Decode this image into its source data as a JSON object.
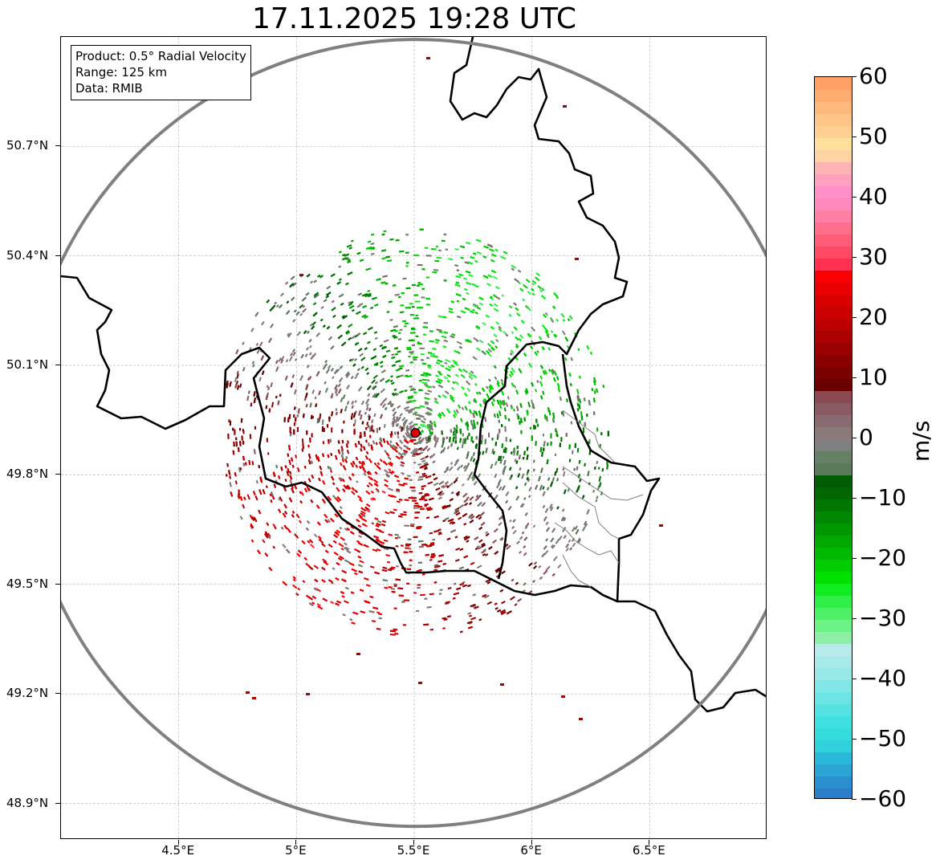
{
  "title": "17.11.2025 19:28 UTC",
  "info": {
    "product": "Product: 0.5° Radial Velocity",
    "range": "Range: 125 km",
    "source": "Data: RMIB"
  },
  "map": {
    "extent_lon": [
      4.0,
      7.0
    ],
    "extent_lat": [
      48.8,
      51.0
    ],
    "radar_site": {
      "lon": 5.505,
      "lat": 49.915,
      "label": "radar-site"
    },
    "range_ring_km": 125,
    "lat_ticks": [
      "48.9°N",
      "49.2°N",
      "49.5°N",
      "49.8°N",
      "50.1°N",
      "50.4°N",
      "50.7°N"
    ],
    "lat_values": [
      48.9,
      49.2,
      49.5,
      49.8,
      50.1,
      50.4,
      50.7
    ],
    "lon_ticks": [
      "4.5°E",
      "5°E",
      "5.5°E",
      "6°E",
      "6.5°E"
    ],
    "lon_values": [
      4.5,
      5.0,
      5.5,
      6.0,
      6.5
    ],
    "colors": {
      "border": "#000000",
      "ring": "#808080",
      "grid": "#b0b0b0",
      "admin": "#808080",
      "site": "#e00000"
    }
  },
  "colorbar": {
    "unit": "m/s",
    "min": -60,
    "max": 60,
    "ticks": [
      "60",
      "50",
      "40",
      "30",
      "20",
      "10",
      "0",
      "−10",
      "−20",
      "−30",
      "−40",
      "−50",
      "−60"
    ],
    "tick_values": [
      60,
      50,
      40,
      30,
      20,
      10,
      0,
      -10,
      -20,
      -30,
      -40,
      -50,
      -60
    ],
    "stops": [
      {
        "v": -60,
        "c": "#2a7fc8"
      },
      {
        "v": -58,
        "c": "#2a8fcf"
      },
      {
        "v": -56,
        "c": "#2aa5d4"
      },
      {
        "v": -54,
        "c": "#2ab8d8"
      },
      {
        "v": -52,
        "c": "#30d0dc"
      },
      {
        "v": -50,
        "c": "#35dcdc"
      },
      {
        "v": -48,
        "c": "#40e0e0"
      },
      {
        "v": -46,
        "c": "#55e2e2"
      },
      {
        "v": -44,
        "c": "#6ce4e4"
      },
      {
        "v": -42,
        "c": "#82e6e6"
      },
      {
        "v": -40,
        "c": "#98e8e8"
      },
      {
        "v": -38,
        "c": "#a8eaea"
      },
      {
        "v": -36,
        "c": "#b8ecec"
      },
      {
        "v": -34,
        "c": "#8ef0a6"
      },
      {
        "v": -32,
        "c": "#6cf285"
      },
      {
        "v": -30,
        "c": "#4ef068"
      },
      {
        "v": -28,
        "c": "#30ee48"
      },
      {
        "v": -26,
        "c": "#10ec20"
      },
      {
        "v": -24,
        "c": "#00e000"
      },
      {
        "v": -22,
        "c": "#00cc00"
      },
      {
        "v": -20,
        "c": "#00b800"
      },
      {
        "v": -18,
        "c": "#00a800"
      },
      {
        "v": -16,
        "c": "#009800"
      },
      {
        "v": -14,
        "c": "#008800"
      },
      {
        "v": -12,
        "c": "#007800"
      },
      {
        "v": -10,
        "c": "#006600"
      },
      {
        "v": -8,
        "c": "#005c00"
      },
      {
        "v": -6,
        "c": "#5a7a5a"
      },
      {
        "v": -4,
        "c": "#668066"
      },
      {
        "v": -2,
        "c": "#808080"
      },
      {
        "v": 0,
        "c": "#8a7a7a"
      },
      {
        "v": 2,
        "c": "#8a6a72"
      },
      {
        "v": 4,
        "c": "#8a5a62"
      },
      {
        "v": 6,
        "c": "#8a4a52"
      },
      {
        "v": 8,
        "c": "#6a0000"
      },
      {
        "v": 10,
        "c": "#7a0000"
      },
      {
        "v": 12,
        "c": "#8a0000"
      },
      {
        "v": 14,
        "c": "#9a0000"
      },
      {
        "v": 16,
        "c": "#aa0000"
      },
      {
        "v": 18,
        "c": "#ba0000"
      },
      {
        "v": 20,
        "c": "#ca0000"
      },
      {
        "v": 22,
        "c": "#da0000"
      },
      {
        "v": 24,
        "c": "#ea0000"
      },
      {
        "v": 26,
        "c": "#fa0000"
      },
      {
        "v": 28,
        "c": "#ff3050"
      },
      {
        "v": 30,
        "c": "#ff4a64"
      },
      {
        "v": 32,
        "c": "#ff5c78"
      },
      {
        "v": 34,
        "c": "#ff6e8c"
      },
      {
        "v": 36,
        "c": "#ff80a4"
      },
      {
        "v": 38,
        "c": "#ff88bc"
      },
      {
        "v": 40,
        "c": "#ff90c8"
      },
      {
        "v": 42,
        "c": "#ffa0c0"
      },
      {
        "v": 44,
        "c": "#ffb4b4"
      },
      {
        "v": 46,
        "c": "#ffd4a4"
      },
      {
        "v": 48,
        "c": "#ffe09c"
      },
      {
        "v": 50,
        "c": "#ffd090"
      },
      {
        "v": 52,
        "c": "#ffc488"
      },
      {
        "v": 54,
        "c": "#ffb87c"
      },
      {
        "v": 56,
        "c": "#ffac70"
      },
      {
        "v": 58,
        "c": "#ffa064"
      }
    ]
  }
}
